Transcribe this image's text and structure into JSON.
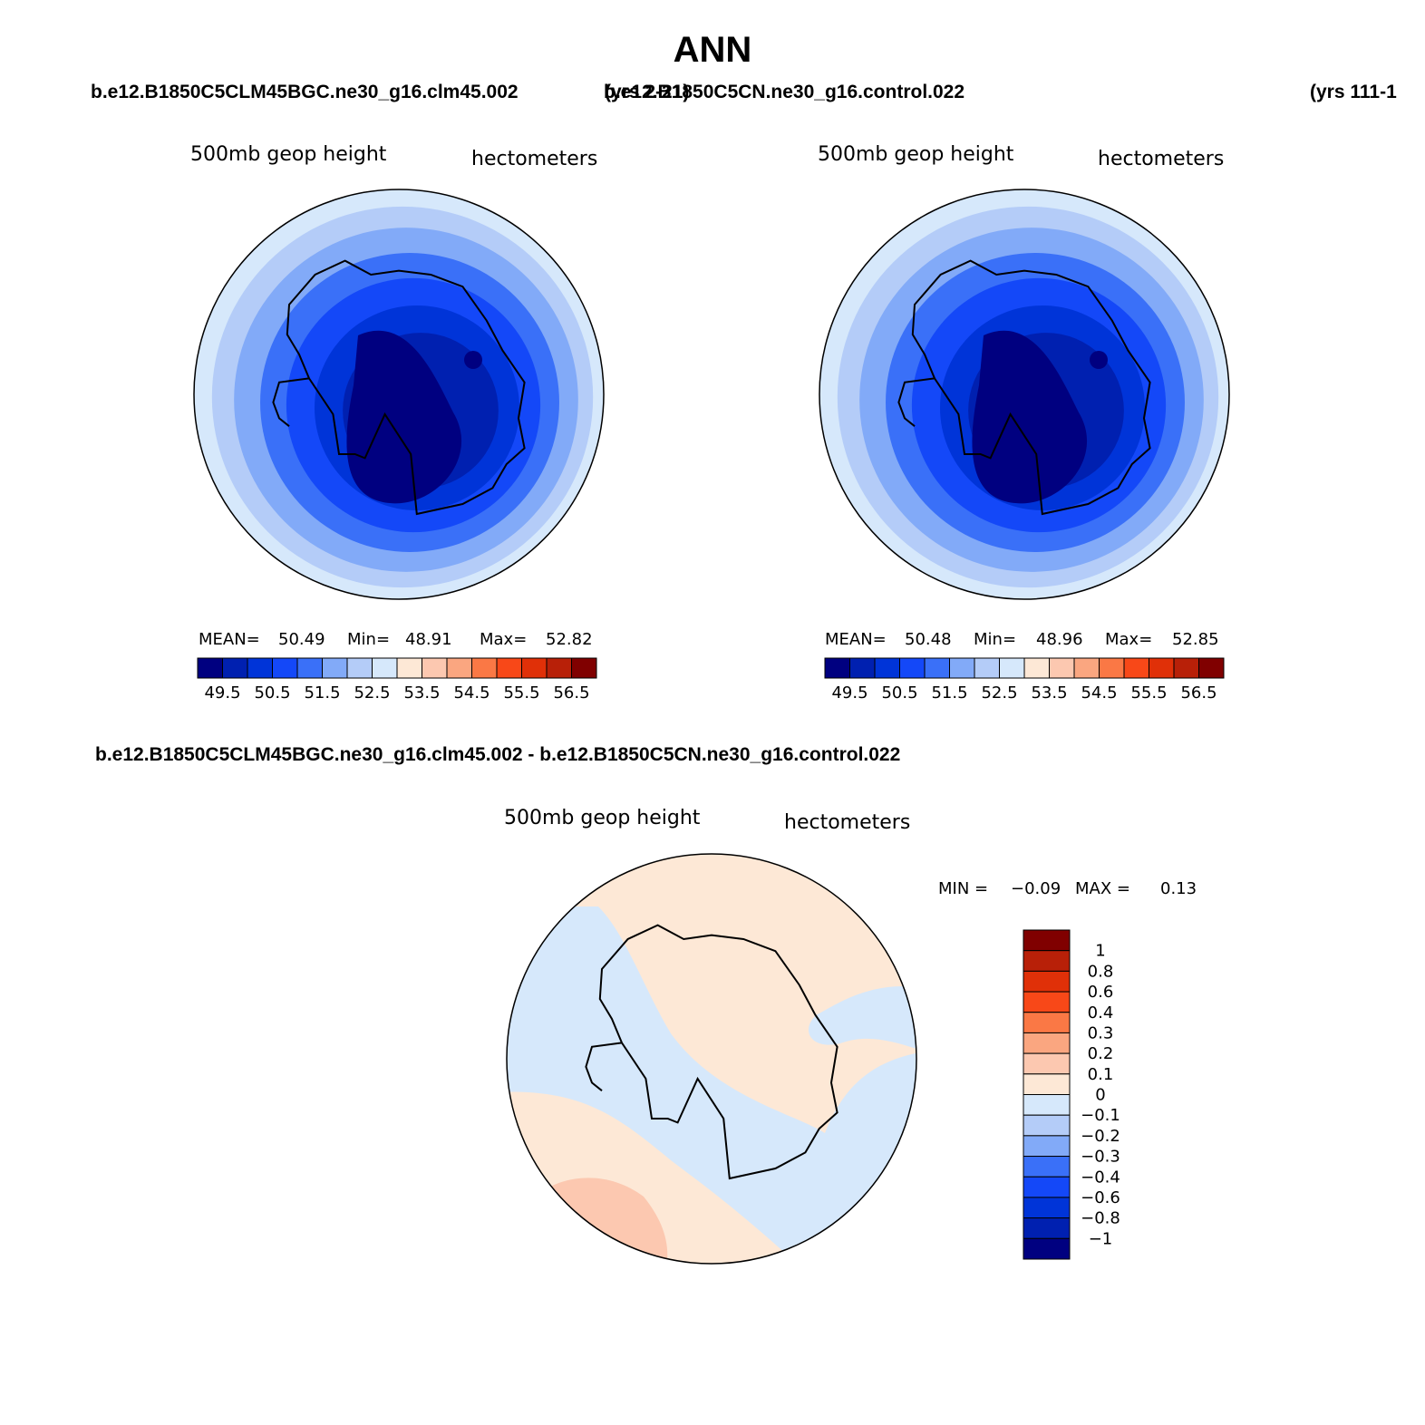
{
  "title": "ANN",
  "palette": [
    "#000080",
    "#0020b0",
    "#0034d8",
    "#1448f8",
    "#3a70f8",
    "#82aaf8",
    "#b4ccf8",
    "#d6e8fb",
    "#fde8d6",
    "#fcc8b0",
    "#faa680",
    "#fa7845",
    "#f84818",
    "#e03008",
    "#b82008",
    "#800000"
  ],
  "diff_palette": [
    "#000080",
    "#0020b0",
    "#0034d8",
    "#1448f8",
    "#3a70f8",
    "#82aaf8",
    "#b4ccf8",
    "#d6e8fb",
    "#fde8d6",
    "#fcc8b0",
    "#faa680",
    "#fa7845",
    "#f84818",
    "#e03008",
    "#b82008",
    "#800000"
  ],
  "coast_points": [
    [
      -0.55,
      -0.45
    ],
    [
      -0.42,
      -0.6
    ],
    [
      -0.27,
      -0.67
    ],
    [
      -0.14,
      -0.6
    ],
    [
      0.0,
      -0.62
    ],
    [
      0.16,
      -0.6
    ],
    [
      0.32,
      -0.54
    ],
    [
      0.44,
      -0.37
    ],
    [
      0.52,
      -0.22
    ],
    [
      0.63,
      -0.06
    ],
    [
      0.6,
      0.12
    ],
    [
      0.63,
      0.27
    ],
    [
      0.54,
      0.35
    ],
    [
      0.47,
      0.47
    ],
    [
      0.32,
      0.55
    ],
    [
      0.09,
      0.6
    ],
    [
      0.06,
      0.3
    ],
    [
      -0.07,
      0.1
    ],
    [
      -0.17,
      0.32
    ],
    [
      -0.22,
      0.3
    ],
    [
      -0.3,
      0.3
    ],
    [
      -0.33,
      0.1
    ],
    [
      -0.45,
      -0.08
    ],
    [
      -0.5,
      -0.2
    ],
    [
      -0.56,
      -0.3
    ]
  ],
  "peninsula_points": [
    [
      -0.45,
      -0.08
    ],
    [
      -0.6,
      -0.06
    ],
    [
      -0.63,
      0.04
    ],
    [
      -0.6,
      0.12
    ],
    [
      -0.55,
      0.16
    ]
  ],
  "panels": {
    "left": {
      "case_title": "b.e12.B1850C5CLM45BGC.ne30_g16.clm45.002",
      "years_label": "(yrs 2-21)",
      "left_string": "500mb geop height",
      "right_string": "hectometers",
      "stats": {
        "mean_label": "MEAN=",
        "mean": "50.49",
        "min_label": "Min=",
        "min": "48.91",
        "max_label": "Max=",
        "max": "52.82"
      },
      "colorbar_labels": [
        "49.5",
        "50.5",
        "51.5",
        "52.5",
        "53.5",
        "54.5",
        "55.5",
        "56.5"
      ]
    },
    "right": {
      "case_title": "b.e12.B1850C5CN.ne30_g16.control.022",
      "years_label": "(yrs 111-1",
      "left_string": "500mb geop height",
      "right_string": "hectometers",
      "stats": {
        "mean_label": "MEAN=",
        "mean": "50.48",
        "min_label": "Min=",
        "min": "48.96",
        "max_label": "Max=",
        "max": "52.85"
      },
      "colorbar_labels": [
        "49.5",
        "50.5",
        "51.5",
        "52.5",
        "53.5",
        "54.5",
        "55.5",
        "56.5"
      ]
    },
    "diff": {
      "case_title": "b.e12.B1850C5CLM45BGC.ne30_g16.clm45.002 - b.e12.B1850C5CN.ne30_g16.control.022",
      "left_string": "500mb geop height",
      "right_string": "hectometers",
      "stats": {
        "min_label": "MIN =",
        "min": "−0.09",
        "max_label": "MAX =",
        "max": "0.13"
      },
      "colorbar_labels": [
        "1",
        "0.8",
        "0.6",
        "0.4",
        "0.3",
        "0.2",
        "0.1",
        "0",
        "−0.1",
        "−0.2",
        "−0.3",
        "−0.4",
        "−0.6",
        "−0.8",
        "−1"
      ]
    }
  }
}
